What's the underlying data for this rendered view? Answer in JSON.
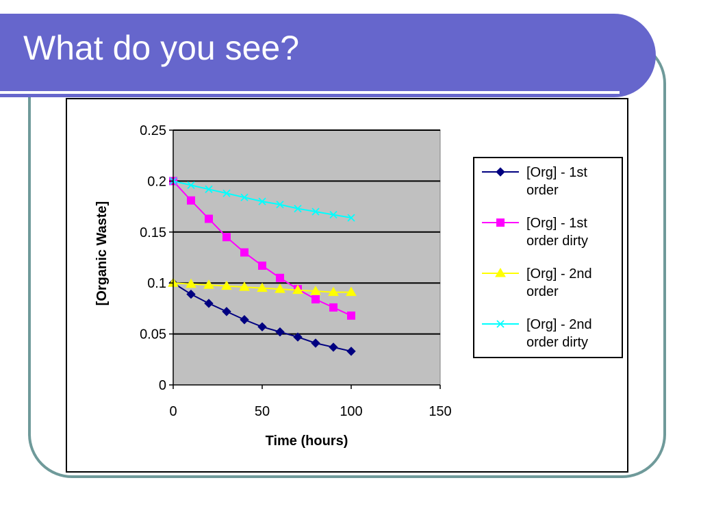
{
  "slide": {
    "title": "What do you see?"
  },
  "colors": {
    "banner": "#6666cc",
    "frame": "#6f9a9a",
    "plot_background": "#c0c0c0",
    "series": [
      "#000080",
      "#ff00ff",
      "#ffff00",
      "#00ffff"
    ]
  },
  "chart_data": {
    "type": "line",
    "title": "",
    "xlabel": "Time (hours)",
    "ylabel": "[Organic Waste]",
    "xlim": [
      0,
      150
    ],
    "ylim": [
      0,
      0.25
    ],
    "x_ticks": [
      0,
      50,
      100,
      150
    ],
    "y_ticks": [
      0,
      0.05,
      0.1,
      0.15,
      0.2,
      0.25
    ],
    "x_tick_labels": [
      "0",
      "50",
      "100",
      "150"
    ],
    "y_tick_labels": [
      "0",
      "0.05",
      "0.1",
      "0.15",
      "0.2",
      "0.25"
    ],
    "grid": "horizontal major lines",
    "legend_position": "right",
    "x": [
      0,
      10,
      20,
      30,
      40,
      50,
      60,
      70,
      80,
      90,
      100
    ],
    "series": [
      {
        "name_lines": [
          "[Org] - 1st",
          "order"
        ],
        "marker": "diamond",
        "values": [
          0.1,
          0.089,
          0.08,
          0.072,
          0.064,
          0.057,
          0.052,
          0.047,
          0.041,
          0.037,
          0.033
        ]
      },
      {
        "name_lines": [
          "[Org] - 1st",
          "order dirty"
        ],
        "marker": "square",
        "values": [
          0.2,
          0.181,
          0.163,
          0.145,
          0.13,
          0.117,
          0.105,
          0.094,
          0.084,
          0.076,
          0.068
        ]
      },
      {
        "name_lines": [
          "[Org] - 2nd",
          "order"
        ],
        "marker": "triangle",
        "values": [
          0.1,
          0.099,
          0.098,
          0.097,
          0.096,
          0.095,
          0.094,
          0.093,
          0.092,
          0.091,
          0.091
        ]
      },
      {
        "name_lines": [
          "[Org] - 2nd",
          "order dirty"
        ],
        "marker": "x",
        "values": [
          0.2,
          0.196,
          0.192,
          0.188,
          0.184,
          0.18,
          0.177,
          0.173,
          0.17,
          0.167,
          0.164
        ]
      }
    ]
  }
}
